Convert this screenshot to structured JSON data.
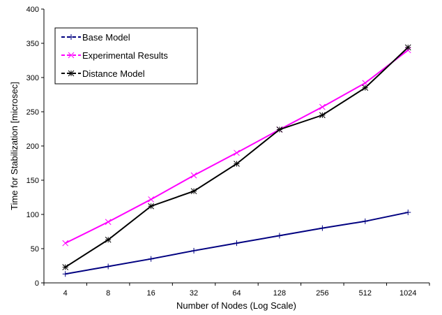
{
  "chart_data": {
    "type": "line",
    "title": "",
    "xlabel": "Number of Nodes (Log Scale)",
    "ylabel": "Time for Stabilization [microsec]",
    "categories": [
      "4",
      "8",
      "16",
      "32",
      "64",
      "128",
      "256",
      "512",
      "1024"
    ],
    "ylim": [
      0,
      400
    ],
    "yticks": [
      "0",
      "50",
      "100",
      "150",
      "200",
      "250",
      "300",
      "350",
      "400"
    ],
    "grid": false,
    "legend_position": "top-left",
    "series": [
      {
        "name": "Base Model",
        "color": "#000080",
        "marker": "plus",
        "values": [
          13,
          24,
          35,
          47,
          58,
          69,
          80,
          90,
          103
        ]
      },
      {
        "name": "Experimental Results",
        "color": "#FF00FF",
        "marker": "x",
        "values": [
          58,
          89,
          122,
          157,
          190,
          224,
          257,
          292,
          340
        ]
      },
      {
        "name": "Distance Model",
        "color": "#000000",
        "marker": "asterisk",
        "values": [
          23,
          63,
          112,
          134,
          174,
          224,
          245,
          285,
          344
        ]
      }
    ]
  }
}
